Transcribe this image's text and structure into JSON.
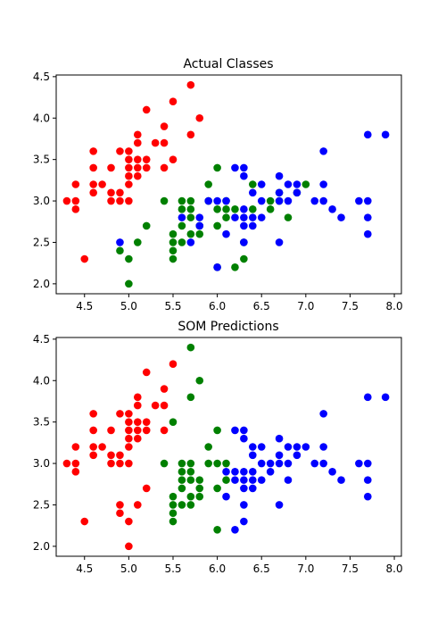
{
  "chart_data": [
    {
      "type": "scatter",
      "title": "Actual Classes",
      "xlim": [
        4.18,
        8.08
      ],
      "ylim": [
        1.88,
        4.52
      ],
      "xticks": [
        4.5,
        5.0,
        5.5,
        6.0,
        6.5,
        7.0,
        7.5,
        8.0
      ],
      "yticks": [
        2.0,
        2.5,
        3.0,
        3.5,
        4.0,
        4.5
      ],
      "xtick_labels": [
        "4.5",
        "5.0",
        "5.5",
        "6.0",
        "6.5",
        "7.0",
        "7.5",
        "8.0"
      ],
      "ytick_labels": [
        "2.0",
        "2.5",
        "3.0",
        "3.5",
        "4.0",
        "4.5"
      ],
      "grid": false,
      "series": [
        {
          "color": "#ff0000",
          "points": [
            [
              4.3,
              3.0
            ],
            [
              4.4,
              2.9
            ],
            [
              4.4,
              3.0
            ],
            [
              4.4,
              3.2
            ],
            [
              4.5,
              2.3
            ],
            [
              4.6,
              3.1
            ],
            [
              4.6,
              3.2
            ],
            [
              4.6,
              3.4
            ],
            [
              4.6,
              3.6
            ],
            [
              4.7,
              3.2
            ],
            [
              4.8,
              3.0
            ],
            [
              4.8,
              3.1
            ],
            [
              4.8,
              3.4
            ],
            [
              4.9,
              3.0
            ],
            [
              4.9,
              3.1
            ],
            [
              4.9,
              3.6
            ],
            [
              5.0,
              3.0
            ],
            [
              5.0,
              3.2
            ],
            [
              5.0,
              3.3
            ],
            [
              5.0,
              3.4
            ],
            [
              5.0,
              3.5
            ],
            [
              5.0,
              3.6
            ],
            [
              5.1,
              3.3
            ],
            [
              5.1,
              3.4
            ],
            [
              5.1,
              3.5
            ],
            [
              5.1,
              3.7
            ],
            [
              5.1,
              3.8
            ],
            [
              5.2,
              3.4
            ],
            [
              5.2,
              3.5
            ],
            [
              5.2,
              4.1
            ],
            [
              5.3,
              3.7
            ],
            [
              5.4,
              3.4
            ],
            [
              5.4,
              3.7
            ],
            [
              5.4,
              3.9
            ],
            [
              5.5,
              3.5
            ],
            [
              5.5,
              4.2
            ],
            [
              5.7,
              3.8
            ],
            [
              5.7,
              4.4
            ],
            [
              5.8,
              4.0
            ]
          ]
        },
        {
          "color": "#008000",
          "points": [
            [
              4.9,
              2.4
            ],
            [
              5.0,
              2.0
            ],
            [
              5.0,
              2.3
            ],
            [
              5.1,
              2.5
            ],
            [
              5.2,
              2.7
            ],
            [
              5.4,
              3.0
            ],
            [
              5.5,
              2.3
            ],
            [
              5.5,
              2.4
            ],
            [
              5.5,
              2.5
            ],
            [
              5.5,
              2.6
            ],
            [
              5.6,
              2.5
            ],
            [
              5.6,
              2.7
            ],
            [
              5.6,
              2.9
            ],
            [
              5.6,
              3.0
            ],
            [
              5.7,
              2.6
            ],
            [
              5.7,
              2.8
            ],
            [
              5.7,
              2.9
            ],
            [
              5.7,
              3.0
            ],
            [
              5.8,
              2.6
            ],
            [
              5.8,
              2.7
            ],
            [
              5.9,
              3.0
            ],
            [
              5.9,
              3.2
            ],
            [
              6.0,
              2.2
            ],
            [
              6.0,
              2.7
            ],
            [
              6.0,
              2.9
            ],
            [
              6.0,
              3.4
            ],
            [
              6.1,
              2.8
            ],
            [
              6.1,
              2.9
            ],
            [
              6.1,
              3.0
            ],
            [
              6.2,
              2.2
            ],
            [
              6.2,
              2.9
            ],
            [
              6.3,
              2.3
            ],
            [
              6.3,
              2.5
            ],
            [
              6.4,
              2.9
            ],
            [
              6.4,
              3.2
            ],
            [
              6.6,
              2.9
            ],
            [
              6.6,
              3.0
            ],
            [
              6.7,
              3.0
            ],
            [
              6.7,
              3.1
            ],
            [
              6.8,
              2.8
            ],
            [
              6.9,
              3.1
            ],
            [
              7.0,
              3.2
            ]
          ]
        },
        {
          "color": "#0000ff",
          "points": [
            [
              4.9,
              2.5
            ],
            [
              5.6,
              2.8
            ],
            [
              5.7,
              2.5
            ],
            [
              5.8,
              2.7
            ],
            [
              5.8,
              2.8
            ],
            [
              5.9,
              3.0
            ],
            [
              6.0,
              2.2
            ],
            [
              6.0,
              3.0
            ],
            [
              6.1,
              2.6
            ],
            [
              6.1,
              3.0
            ],
            [
              6.2,
              2.8
            ],
            [
              6.2,
              3.4
            ],
            [
              6.3,
              2.5
            ],
            [
              6.3,
              2.7
            ],
            [
              6.3,
              2.8
            ],
            [
              6.3,
              2.9
            ],
            [
              6.3,
              3.3
            ],
            [
              6.3,
              3.4
            ],
            [
              6.4,
              2.7
            ],
            [
              6.4,
              2.8
            ],
            [
              6.4,
              3.1
            ],
            [
              6.5,
              2.8
            ],
            [
              6.5,
              3.0
            ],
            [
              6.5,
              3.2
            ],
            [
              6.7,
              2.5
            ],
            [
              6.7,
              3.0
            ],
            [
              6.7,
              3.1
            ],
            [
              6.7,
              3.3
            ],
            [
              6.8,
              3.0
            ],
            [
              6.8,
              3.2
            ],
            [
              6.9,
              3.1
            ],
            [
              6.9,
              3.2
            ],
            [
              7.1,
              3.0
            ],
            [
              7.2,
              3.0
            ],
            [
              7.2,
              3.2
            ],
            [
              7.2,
              3.6
            ],
            [
              7.3,
              2.9
            ],
            [
              7.4,
              2.8
            ],
            [
              7.6,
              3.0
            ],
            [
              7.7,
              2.6
            ],
            [
              7.7,
              2.8
            ],
            [
              7.7,
              3.0
            ],
            [
              7.7,
              3.8
            ],
            [
              7.9,
              3.8
            ]
          ]
        }
      ]
    },
    {
      "type": "scatter",
      "title": "SOM Predictions",
      "xlim": [
        4.18,
        8.08
      ],
      "ylim": [
        1.88,
        4.52
      ],
      "xticks": [
        4.5,
        5.0,
        5.5,
        6.0,
        6.5,
        7.0,
        7.5,
        8.0
      ],
      "yticks": [
        2.0,
        2.5,
        3.0,
        3.5,
        4.0,
        4.5
      ],
      "xtick_labels": [
        "4.5",
        "5.0",
        "5.5",
        "6.0",
        "6.5",
        "7.0",
        "7.5",
        "8.0"
      ],
      "ytick_labels": [
        "2.0",
        "2.5",
        "3.0",
        "3.5",
        "4.0",
        "4.5"
      ],
      "grid": false,
      "series": [
        {
          "color": "#ff0000",
          "points": [
            [
              4.3,
              3.0
            ],
            [
              4.4,
              2.9
            ],
            [
              4.4,
              3.0
            ],
            [
              4.4,
              3.2
            ],
            [
              4.5,
              2.3
            ],
            [
              4.6,
              3.1
            ],
            [
              4.6,
              3.2
            ],
            [
              4.6,
              3.4
            ],
            [
              4.6,
              3.6
            ],
            [
              4.7,
              3.2
            ],
            [
              4.8,
              3.0
            ],
            [
              4.8,
              3.1
            ],
            [
              4.8,
              3.4
            ],
            [
              4.9,
              2.4
            ],
            [
              4.9,
              2.5
            ],
            [
              4.9,
              3.0
            ],
            [
              4.9,
              3.1
            ],
            [
              4.9,
              3.6
            ],
            [
              5.0,
              2.0
            ],
            [
              5.0,
              2.3
            ],
            [
              5.0,
              3.0
            ],
            [
              5.0,
              3.2
            ],
            [
              5.0,
              3.3
            ],
            [
              5.0,
              3.4
            ],
            [
              5.0,
              3.5
            ],
            [
              5.0,
              3.6
            ],
            [
              5.1,
              2.5
            ],
            [
              5.1,
              3.3
            ],
            [
              5.1,
              3.4
            ],
            [
              5.1,
              3.5
            ],
            [
              5.1,
              3.7
            ],
            [
              5.1,
              3.8
            ],
            [
              5.2,
              2.7
            ],
            [
              5.2,
              3.4
            ],
            [
              5.2,
              3.5
            ],
            [
              5.2,
              4.1
            ],
            [
              5.3,
              3.7
            ],
            [
              5.4,
              3.4
            ],
            [
              5.4,
              3.7
            ],
            [
              5.4,
              3.9
            ],
            [
              5.5,
              4.2
            ]
          ]
        },
        {
          "color": "#008000",
          "points": [
            [
              5.4,
              3.0
            ],
            [
              5.5,
              2.3
            ],
            [
              5.5,
              2.4
            ],
            [
              5.5,
              2.5
            ],
            [
              5.5,
              2.6
            ],
            [
              5.5,
              3.5
            ],
            [
              5.6,
              2.5
            ],
            [
              5.6,
              2.7
            ],
            [
              5.6,
              2.8
            ],
            [
              5.6,
              2.9
            ],
            [
              5.6,
              3.0
            ],
            [
              5.7,
              2.5
            ],
            [
              5.7,
              2.6
            ],
            [
              5.7,
              2.8
            ],
            [
              5.7,
              2.9
            ],
            [
              5.7,
              3.0
            ],
            [
              5.7,
              3.8
            ],
            [
              5.7,
              4.4
            ],
            [
              5.8,
              2.6
            ],
            [
              5.8,
              2.7
            ],
            [
              5.8,
              2.8
            ],
            [
              5.8,
              4.0
            ],
            [
              5.9,
              3.0
            ],
            [
              5.9,
              3.2
            ],
            [
              6.0,
              2.2
            ],
            [
              6.0,
              2.7
            ],
            [
              6.0,
              3.0
            ],
            [
              6.0,
              3.4
            ],
            [
              6.1,
              2.8
            ],
            [
              6.1,
              3.0
            ]
          ]
        },
        {
          "color": "#0000ff",
          "points": [
            [
              6.1,
              2.6
            ],
            [
              6.1,
              2.9
            ],
            [
              6.2,
              2.2
            ],
            [
              6.2,
              2.8
            ],
            [
              6.2,
              2.9
            ],
            [
              6.2,
              3.4
            ],
            [
              6.3,
              2.3
            ],
            [
              6.3,
              2.5
            ],
            [
              6.3,
              2.7
            ],
            [
              6.3,
              2.8
            ],
            [
              6.3,
              2.9
            ],
            [
              6.3,
              3.3
            ],
            [
              6.3,
              3.4
            ],
            [
              6.4,
              2.7
            ],
            [
              6.4,
              2.8
            ],
            [
              6.4,
              2.9
            ],
            [
              6.4,
              3.1
            ],
            [
              6.4,
              3.2
            ],
            [
              6.5,
              2.8
            ],
            [
              6.5,
              3.0
            ],
            [
              6.5,
              3.2
            ],
            [
              6.6,
              2.9
            ],
            [
              6.6,
              3.0
            ],
            [
              6.7,
              2.5
            ],
            [
              6.7,
              3.0
            ],
            [
              6.7,
              3.1
            ],
            [
              6.7,
              3.3
            ],
            [
              6.8,
              2.8
            ],
            [
              6.8,
              3.0
            ],
            [
              6.8,
              3.2
            ],
            [
              6.9,
              3.1
            ],
            [
              6.9,
              3.2
            ],
            [
              7.0,
              3.2
            ],
            [
              7.1,
              3.0
            ],
            [
              7.2,
              3.0
            ],
            [
              7.2,
              3.2
            ],
            [
              7.2,
              3.6
            ],
            [
              7.3,
              2.9
            ],
            [
              7.4,
              2.8
            ],
            [
              7.6,
              3.0
            ],
            [
              7.7,
              2.6
            ],
            [
              7.7,
              2.8
            ],
            [
              7.7,
              3.0
            ],
            [
              7.7,
              3.8
            ],
            [
              7.9,
              3.8
            ]
          ]
        }
      ]
    }
  ]
}
